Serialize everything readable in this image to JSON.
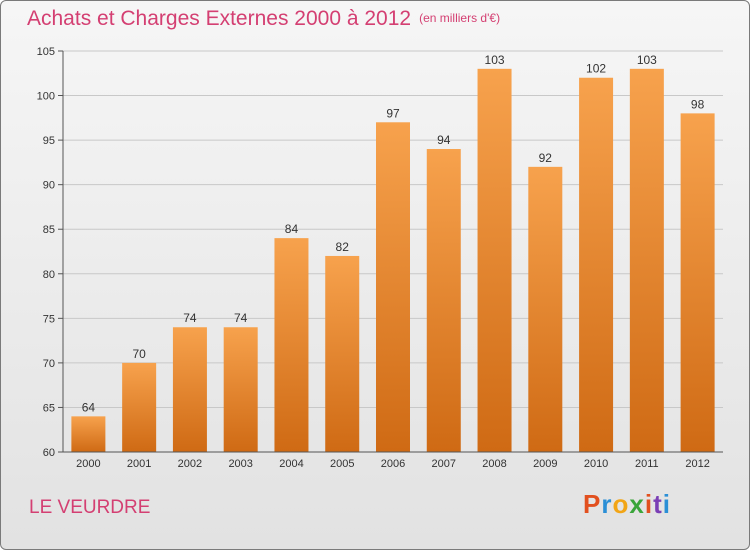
{
  "header": {
    "title": "Achats et Charges Externes 2000 à 2012",
    "unit": "(en milliers d'€)"
  },
  "footer": {
    "commune": "LE VEURDRE",
    "brand": "Proxiti",
    "brand_colors": [
      "#e2501f",
      "#2b8fd6",
      "#f2a516",
      "#3aa53a",
      "#e2501f",
      "#7b3fb5",
      "#2b8fd6"
    ]
  },
  "colors": {
    "title": "#d43f72",
    "bar_light": "#f7a24d",
    "bar_dark": "#cf6a14"
  },
  "chart_data": {
    "type": "bar",
    "title": "Achats et Charges Externes 2000 à 2012",
    "categories": [
      "2000",
      "2001",
      "2002",
      "2003",
      "2004",
      "2005",
      "2006",
      "2007",
      "2008",
      "2009",
      "2010",
      "2011",
      "2012"
    ],
    "values": [
      64,
      70,
      74,
      74,
      84,
      82,
      97,
      94,
      103,
      92,
      102,
      103,
      98
    ],
    "ylim": [
      60,
      105
    ],
    "yticks": [
      60,
      65,
      70,
      75,
      80,
      85,
      90,
      95,
      100,
      105
    ],
    "grid": true
  }
}
